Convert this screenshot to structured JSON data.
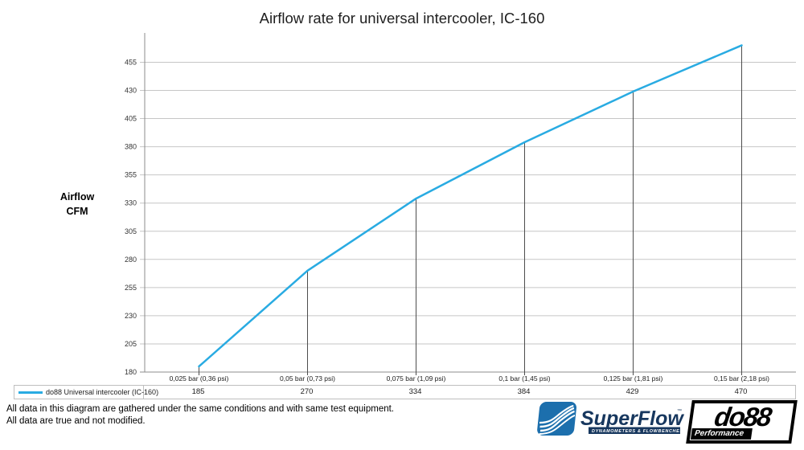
{
  "title": "Airflow rate for universal intercooler, IC-160",
  "y_axis_title": "Airflow\nCFM",
  "legend": "do88 Universal intercooler (IC-160)",
  "footer": {
    "line1": "All data in this diagram are gathered under the same conditions and with same test equipment.",
    "line2": "All data are true and not modified."
  },
  "logos": {
    "superflow": {
      "name": "SuperFlow",
      "tm": "™",
      "tagline": "DYNAMOMETERS & FLOWBENCHES",
      "icon_color": "#1c6fad",
      "text_color": "#17375e"
    },
    "do88": {
      "name": "do88",
      "sub": "Performance"
    }
  },
  "colors": {
    "series": "#29abe2",
    "grid": "#c6c6c6",
    "axis": "#8c8c8c",
    "drop_line": "#4d4d4d",
    "table_border": "#bfbfbf",
    "tick_text": "#333333"
  },
  "chart_data": {
    "type": "line",
    "title": "Airflow rate for universal intercooler, IC-160",
    "ylabel": "Airflow CFM",
    "xlabel": "",
    "categories": [
      "0,025 bar (0,36 psi)",
      "0,05 bar (0,73 psi)",
      "0,075 bar (1,09 psi)",
      "0,1 bar (1,45 psi)",
      "0,125 bar (1,81 psi)",
      "0,15 bar (2,18 psi)"
    ],
    "series": [
      {
        "name": "do88 Universal intercooler (IC-160)",
        "values": [
          185,
          270,
          334,
          384,
          429,
          470
        ]
      }
    ],
    "yticks": [
      180,
      205,
      230,
      255,
      280,
      305,
      330,
      355,
      380,
      405,
      430,
      455
    ],
    "ylim": [
      180,
      481
    ],
    "grid": true,
    "drop_lines": true,
    "legend_position": "bottom data table"
  }
}
